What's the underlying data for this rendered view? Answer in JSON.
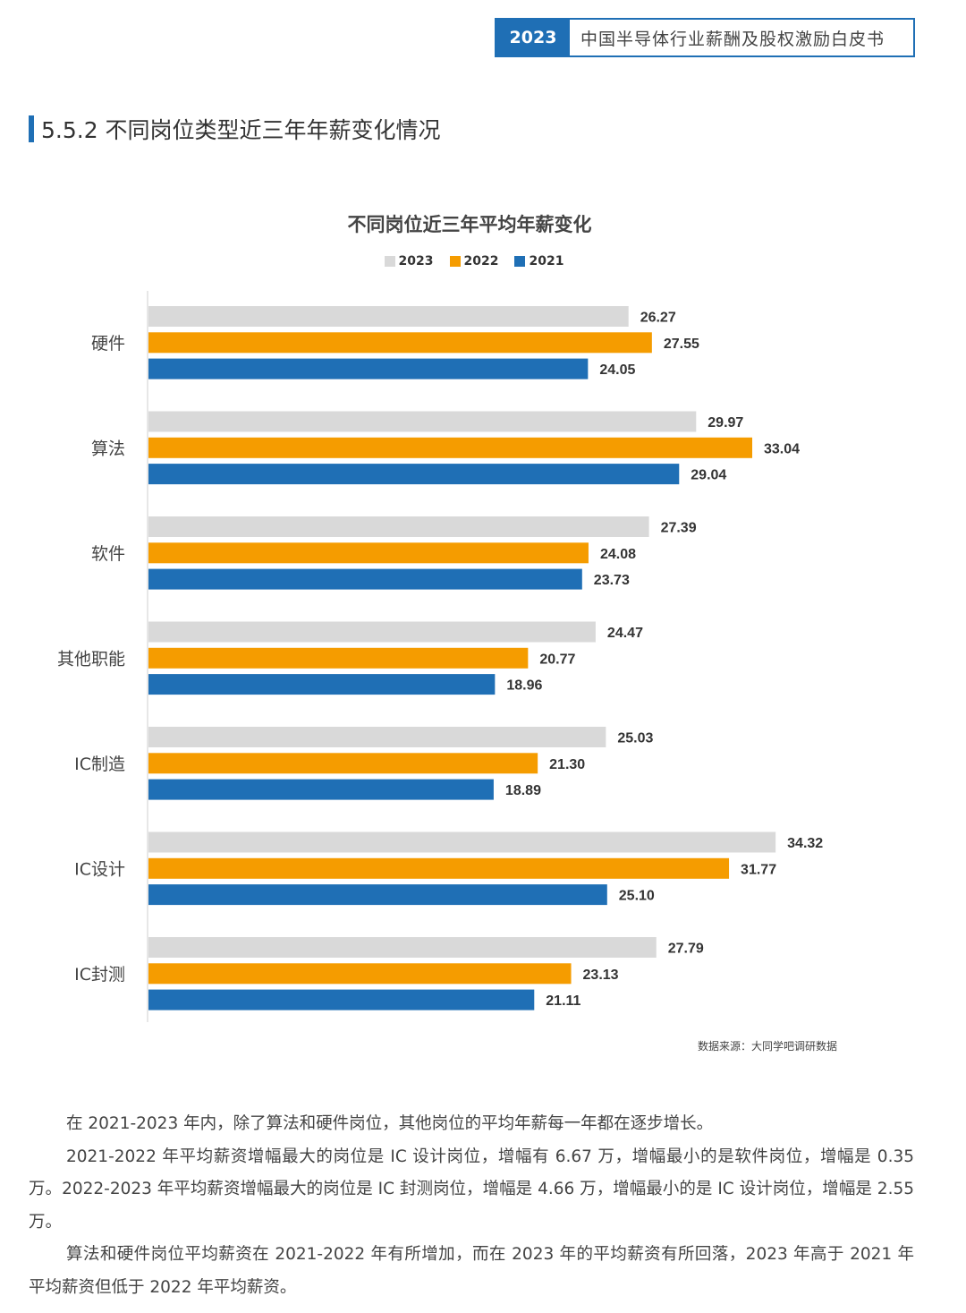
{
  "header": {
    "year": "2023",
    "title": "中国半导体行业薪酬及股权激励白皮书"
  },
  "section_title": "5.5.2 不同岗位类型近三年年薪变化情况",
  "colors": {
    "accent": "#1f6fb5",
    "s2023": "#d9d9d9",
    "s2022": "#f59c00",
    "s2021": "#1f6fb5"
  },
  "chart_data": {
    "type": "bar",
    "orientation": "horizontal",
    "title": "不同岗位近三年平均年薪变化",
    "categories": [
      "硬件",
      "算法",
      "软件",
      "其他职能",
      "IC制造",
      "IC设计",
      "IC封测"
    ],
    "series": [
      {
        "name": "2023",
        "color": "#d9d9d9",
        "values": [
          26.27,
          29.97,
          27.39,
          24.47,
          25.03,
          34.32,
          27.79
        ],
        "labels": [
          "26.27",
          "29.97",
          "27.39",
          "24.47",
          "25.03",
          "34.32",
          "27.79"
        ]
      },
      {
        "name": "2022",
        "color": "#f59c00",
        "values": [
          27.55,
          33.04,
          24.08,
          20.77,
          21.3,
          31.77,
          23.13
        ],
        "labels": [
          "27.55",
          "33.04",
          "24.08",
          "20.77",
          "21.30",
          "31.77",
          "23.13"
        ]
      },
      {
        "name": "2021",
        "color": "#1f6fb5",
        "values": [
          24.05,
          29.04,
          23.73,
          18.96,
          18.89,
          25.1,
          21.11
        ],
        "labels": [
          "24.05",
          "29.04",
          "23.73",
          "18.96",
          "18.89",
          "25.10",
          "21.11"
        ]
      }
    ],
    "xlim": [
      0,
      34.32
    ],
    "legend_position": "top-center",
    "grid": false
  },
  "source": "数据来源：大同学吧调研数据",
  "paragraphs": [
    "在 2021-2023 年内，除了算法和硬件岗位，其他岗位的平均年薪每一年都在逐步增长。",
    "2021-2022 年平均薪资增幅最大的岗位是 IC 设计岗位，增幅有 6.67 万，增幅最小的是软件岗位，增幅是 0.35 万。2022-2023 年平均薪资增幅最大的岗位是 IC 封测岗位，增幅是 4.66 万，增幅最小的是 IC 设计岗位，增幅是 2.55 万。",
    "算法和硬件岗位平均薪资在 2021-2022 年有所增加，而在 2023 年的平均薪资有所回落，2023 年高于 2021 年平均薪资但低于 2022 年平均薪资。"
  ]
}
